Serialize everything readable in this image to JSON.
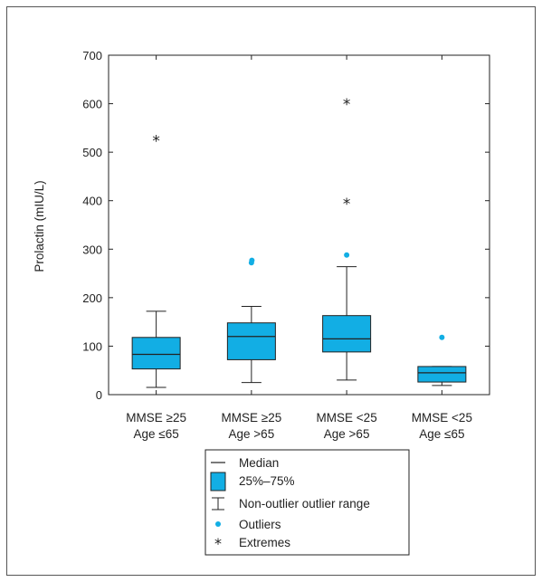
{
  "chart_data": {
    "type": "boxplot",
    "ylabel": "Prolactin (mIU/L)",
    "ylim": [
      0,
      700
    ],
    "yticks": [
      0,
      100,
      200,
      300,
      400,
      500,
      600,
      700
    ],
    "grid": false,
    "categories": [
      {
        "line1": "MMSE ≥25",
        "line2": "Age ≤65"
      },
      {
        "line1": "MMSE ≥25",
        "line2": "Age >65"
      },
      {
        "line1": "MMSE <25",
        "line2": "Age >65"
      },
      {
        "line1": "MMSE <25",
        "line2": "Age ≤65"
      }
    ],
    "boxes": [
      {
        "whisker_low": 15,
        "q1": 53,
        "median": 83,
        "q3": 118,
        "whisker_high": 172,
        "outliers": [],
        "extremes": [
          527
        ]
      },
      {
        "whisker_low": 25,
        "q1": 72,
        "median": 120,
        "q3": 148,
        "whisker_high": 182,
        "outliers": [
          272,
          277
        ],
        "extremes": []
      },
      {
        "whisker_low": 30,
        "q1": 88,
        "median": 115,
        "q3": 163,
        "whisker_high": 264,
        "outliers": [
          288
        ],
        "extremes": [
          398,
          603
        ]
      },
      {
        "whisker_low": 19,
        "q1": 26,
        "median": 45,
        "q3": 58,
        "whisker_high": 58,
        "outliers": [
          118
        ],
        "extremes": []
      }
    ],
    "legend": {
      "placement": "bottom",
      "entries": [
        {
          "symbol": "median-line",
          "label": "Median"
        },
        {
          "symbol": "box",
          "label": "25%–75%"
        },
        {
          "symbol": "whisker",
          "label": "Non-outlier outlier range"
        },
        {
          "symbol": "dot",
          "label": "Outliers"
        },
        {
          "symbol": "star",
          "label": "Extremes"
        }
      ]
    },
    "colors": {
      "box_fill": "#12aee4",
      "outlier": "#12aee4",
      "line": "#222222"
    }
  }
}
